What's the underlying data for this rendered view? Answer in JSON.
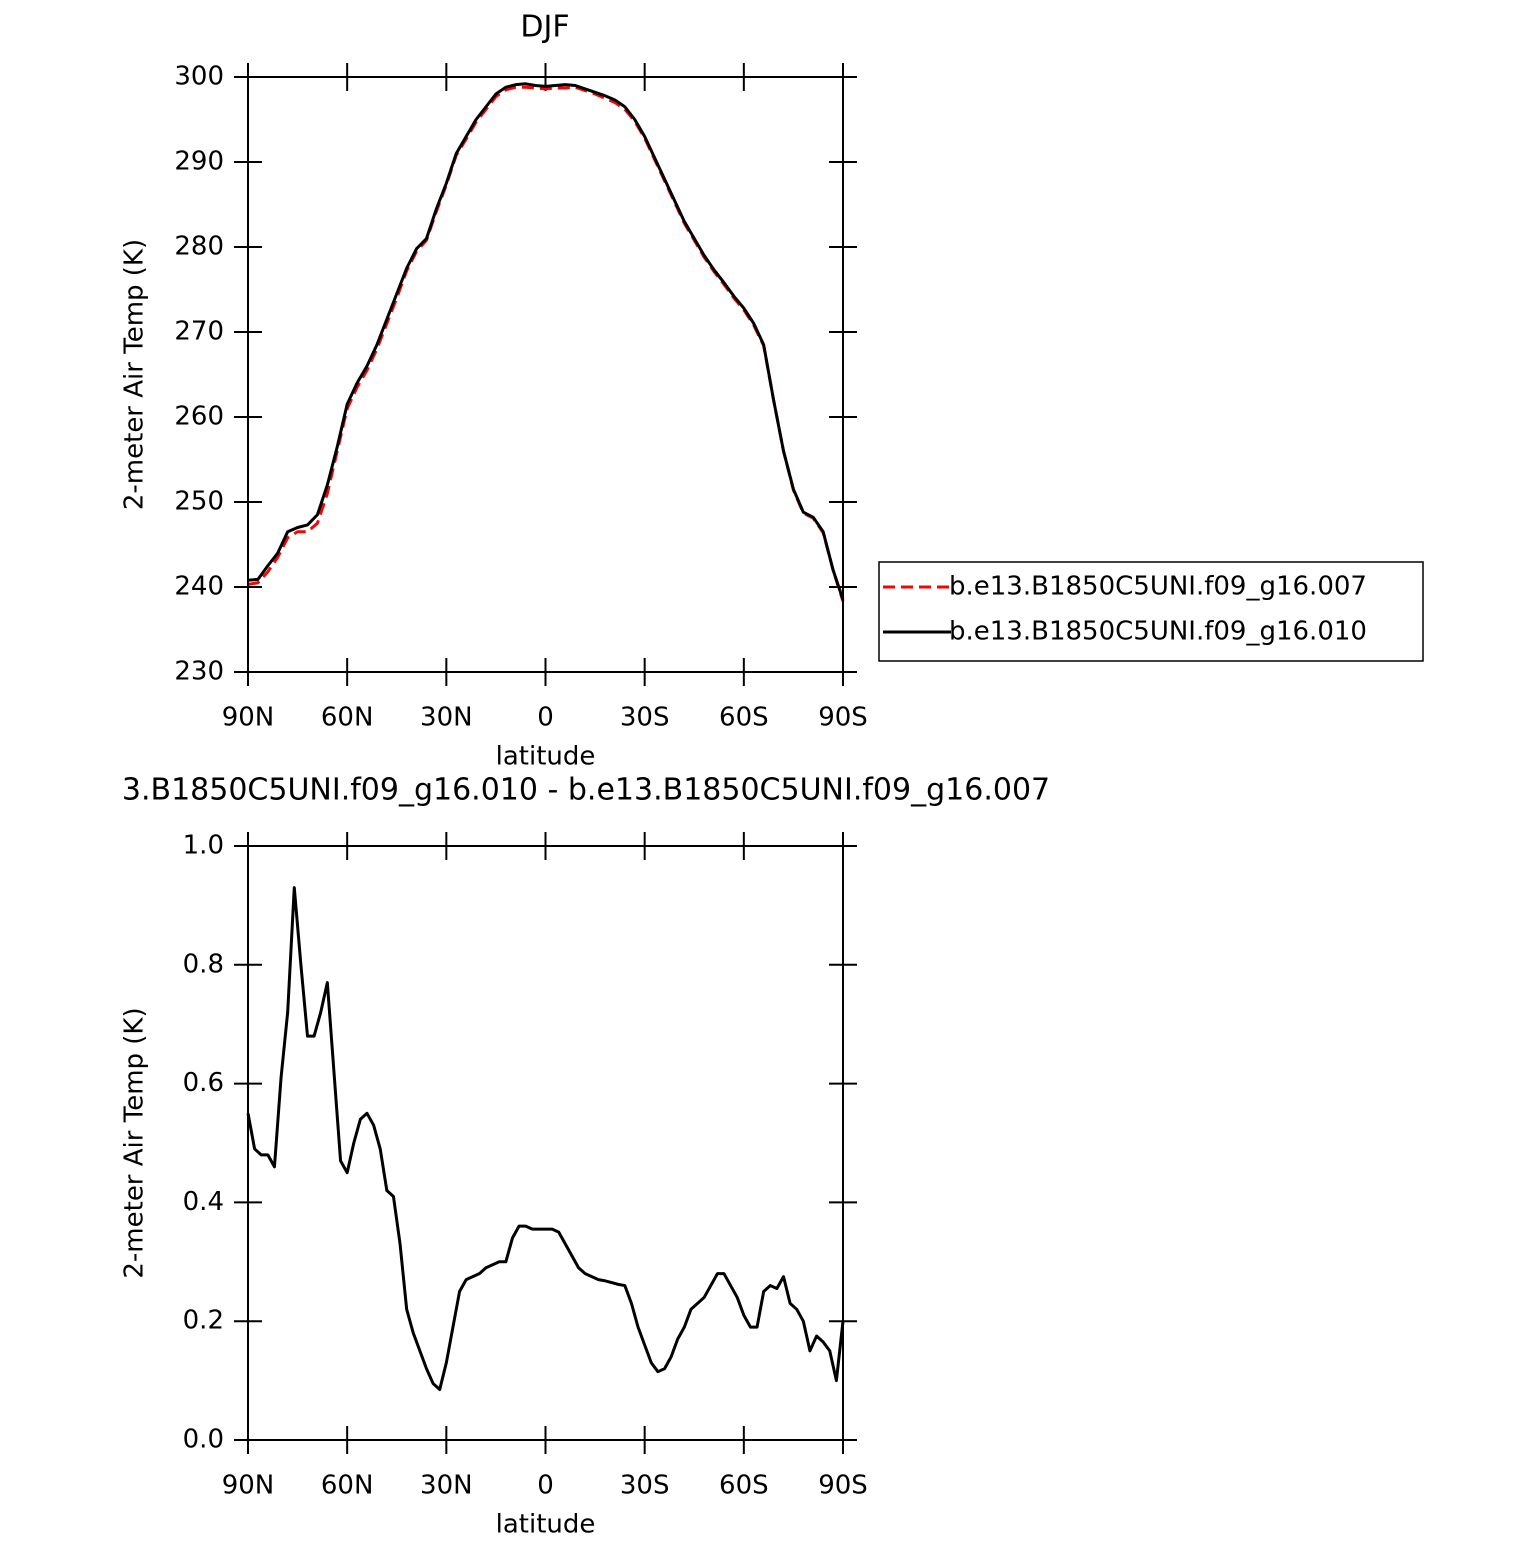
{
  "chart_data": [
    {
      "type": "line",
      "title": "DJF",
      "xlabel": "latitude",
      "ylabel": "2-meter Air Temp (K)",
      "x": [
        90,
        87,
        84,
        81,
        78,
        75,
        72,
        69,
        66,
        63,
        60,
        57,
        54,
        51,
        48,
        45,
        42,
        39,
        36,
        33,
        30,
        27,
        24,
        21,
        18,
        15,
        12,
        9,
        6,
        3,
        0,
        -3,
        -6,
        -9,
        -12,
        -15,
        -18,
        -21,
        -24,
        -27,
        -30,
        -33,
        -36,
        -39,
        -42,
        -45,
        -48,
        -51,
        -54,
        -57,
        -60,
        -63,
        -66,
        -69,
        -72,
        -75,
        -78,
        -81,
        -84,
        -87,
        -90
      ],
      "series": [
        {
          "name": "b.e13.B1850C5UNI.f09_g16.007",
          "color": "#ff0000",
          "line_style": "dashed",
          "values": [
            240.3,
            240.5,
            241.8,
            243.5,
            245.8,
            246.5,
            246.5,
            247.5,
            251,
            256,
            261,
            263.5,
            265.5,
            268,
            271,
            274,
            277.2,
            279.5,
            280.8,
            284.2,
            287.3,
            290.8,
            292.7,
            294.7,
            296.2,
            297.7,
            298.5,
            298.8,
            298.8,
            298.7,
            298.6,
            298.7,
            298.7,
            298.8,
            298.4,
            298,
            297.5,
            297,
            296.2,
            294.8,
            292.8,
            290.3,
            287.8,
            285.3,
            282.8,
            280.8,
            278.8,
            277.1,
            275.6,
            274,
            272.6,
            270.8,
            268.4,
            262,
            256,
            251.4,
            248.7,
            248.1,
            246.4,
            242,
            238.3
          ]
        },
        {
          "name": "b.e13.B1850C5UNI.f09_g16.010",
          "color": "#000000",
          "line_style": "solid",
          "values": [
            240.8,
            240.9,
            242.5,
            244,
            246.5,
            247,
            247.3,
            248.5,
            252,
            256.5,
            261.5,
            264,
            266,
            268.5,
            271.5,
            274.5,
            277.5,
            279.8,
            281,
            284.5,
            287.5,
            291,
            293,
            295,
            296.5,
            298,
            298.8,
            299.1,
            299.2,
            299,
            298.9,
            299,
            299.1,
            299,
            298.6,
            298.2,
            297.8,
            297.3,
            296.5,
            295,
            293,
            290.5,
            288,
            285.5,
            283,
            281,
            279,
            277.3,
            275.8,
            274.2,
            272.8,
            271,
            268.5,
            262,
            256,
            251.5,
            248.8,
            248.2,
            246.5,
            242,
            238.5
          ]
        }
      ],
      "xlim": [
        90,
        -90
      ],
      "xticks": [
        {
          "value": 90,
          "label": "90N"
        },
        {
          "value": 60,
          "label": "60N"
        },
        {
          "value": 30,
          "label": "30N"
        },
        0,
        {
          "value": -30,
          "label": "30S"
        },
        {
          "value": -60,
          "label": "60S"
        },
        {
          "value": -90,
          "label": "90S"
        }
      ],
      "ylim": [
        230,
        300
      ],
      "yticks": [
        230,
        240,
        250,
        260,
        270,
        280,
        290,
        300
      ],
      "legend": "right"
    },
    {
      "type": "line",
      "title": "3.B1850C5UNI.f09_g16.010 - b.e13.B1850C5UNI.f09_g16.007",
      "xlabel": "latitude",
      "ylabel": "2-meter Air Temp (K)",
      "x": [
        90,
        88,
        86,
        84,
        82,
        80,
        78,
        76,
        74,
        72,
        70,
        68,
        66,
        64,
        62,
        60,
        58,
        56,
        54,
        52,
        50,
        48,
        46,
        44,
        42,
        40,
        38,
        36,
        34,
        32,
        30,
        28,
        26,
        24,
        22,
        20,
        18,
        16,
        14,
        12,
        10,
        8,
        6,
        4,
        2,
        0,
        -2,
        -4,
        -6,
        -8,
        -10,
        -12,
        -14,
        -16,
        -18,
        -20,
        -22,
        -24,
        -26,
        -28,
        -30,
        -32,
        -34,
        -36,
        -38,
        -40,
        -42,
        -44,
        -46,
        -48,
        -50,
        -52,
        -54,
        -56,
        -58,
        -60,
        -62,
        -64,
        -66,
        -68,
        -70,
        -72,
        -74,
        -76,
        -78,
        -80,
        -82,
        -84,
        -86,
        -88,
        -90
      ],
      "series": [
        {
          "color": "#000000",
          "line_style": "solid",
          "values": [
            0.55,
            0.49,
            0.48,
            0.48,
            0.46,
            0.61,
            0.72,
            0.93,
            0.8,
            0.68,
            0.68,
            0.72,
            0.77,
            0.62,
            0.47,
            0.45,
            0.5,
            0.54,
            0.55,
            0.53,
            0.49,
            0.42,
            0.41,
            0.33,
            0.22,
            0.18,
            0.15,
            0.12,
            0.095,
            0.085,
            0.13,
            0.19,
            0.25,
            0.27,
            0.275,
            0.28,
            0.29,
            0.295,
            0.3,
            0.3,
            0.34,
            0.36,
            0.36,
            0.355,
            0.355,
            0.355,
            0.355,
            0.35,
            0.33,
            0.31,
            0.29,
            0.28,
            0.275,
            0.27,
            0.268,
            0.265,
            0.262,
            0.26,
            0.23,
            0.19,
            0.16,
            0.13,
            0.115,
            0.12,
            0.14,
            0.17,
            0.19,
            0.22,
            0.23,
            0.24,
            0.26,
            0.28,
            0.28,
            0.26,
            0.24,
            0.21,
            0.19,
            0.19,
            0.25,
            0.26,
            0.255,
            0.275,
            0.23,
            0.22,
            0.2,
            0.15,
            0.175,
            0.165,
            0.15,
            0.1,
            0.2
          ]
        }
      ],
      "xlim": [
        90,
        -90
      ],
      "xticks": [
        {
          "value": 90,
          "label": "90N"
        },
        {
          "value": 60,
          "label": "60N"
        },
        {
          "value": 30,
          "label": "30N"
        },
        0,
        {
          "value": -30,
          "label": "30S"
        },
        {
          "value": -60,
          "label": "60S"
        },
        {
          "value": -90,
          "label": "90S"
        }
      ],
      "ylim": [
        0,
        1
      ],
      "yticks": [
        {
          "value": 0,
          "label": "0.0"
        },
        0.2,
        0.4,
        0.6,
        0.8,
        {
          "value": 1,
          "label": "1.0"
        }
      ]
    }
  ]
}
